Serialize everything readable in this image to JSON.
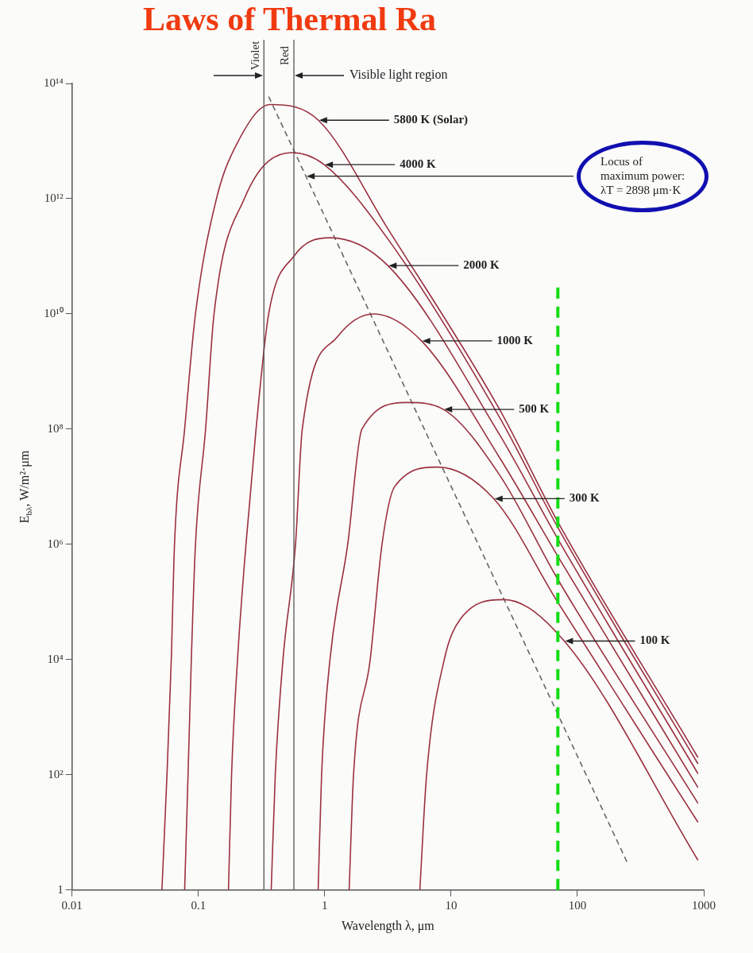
{
  "chart_data": {
    "type": "line",
    "title": "Laws of Thermal Ra",
    "xlabel": "Wavelength λ, μm",
    "ylabel": "E$_{bλ}$, W/m²·μm",
    "log": "xy",
    "grid": false,
    "legend": false,
    "marker": "none",
    "line_style": "solid",
    "xlim": [
      0.01,
      1000
    ],
    "xticks": [
      0.01,
      0.1,
      1,
      10,
      100,
      1000
    ],
    "ylim": [
      1,
      100000000000000.0
    ],
    "yticks": [
      1,
      {
        "value": 100,
        "label": "10²"
      },
      {
        "value": 10000,
        "label": "10⁴"
      },
      {
        "value": 1000000,
        "label": "10⁶"
      },
      {
        "value": 100000000,
        "label": "10⁸"
      },
      {
        "value": 10000000000,
        "label": "10¹⁰"
      },
      {
        "value": 1000000000000,
        "label": "10¹²"
      },
      {
        "value": 100000000000000.0,
        "label": "10¹⁴"
      }
    ],
    "series": [
      {
        "type": "line",
        "color": "#9b3040",
        "x": [
          0.0514,
          0.0564,
          0.061,
          0.0647,
          0.0778,
          0.0948,
          0.139,
          0.198,
          0.37,
          0.89,
          3.16,
          24.2,
          69.7,
          900
        ],
        "values": [
          1,
          100,
          10000,
          1000000,
          100000000,
          10000000000.0,
          1000000000000.0,
          8300000000000.0,
          43000000000000.0,
          23000000000000.0,
          300000000000.0,
          220000000.0,
          2500000.0,
          200
        ]
      },
      {
        "type": "line",
        "color": "#9b3040",
        "x": [
          0.0778,
          0.0828,
          0.0879,
          0.0948,
          0.114,
          0.133,
          0.231,
          0.55,
          0.99,
          3.16,
          24.2,
          69.7,
          900
        ],
        "values": [
          1,
          100,
          10000,
          1000000,
          100000000,
          10000000000.0,
          1000000000000.0,
          6300000000000.0,
          3900000000000.0,
          200000000000.0,
          160000000.0,
          2000000.0,
          155
        ]
      },
      {
        "type": "line",
        "color": "#9b3040",
        "x": [
          0.173,
          0.183,
          0.204,
          0.238,
          0.286,
          0.36,
          0.569,
          1.1,
          3.16,
          24.2,
          69.7,
          900
        ],
        "values": [
          1,
          100,
          10000,
          1000000,
          100000000,
          10000000000.0,
          100000000000.0,
          210000000000.0,
          69000000000.0,
          80000000.0,
          1260000.0,
          105
        ]
      },
      {
        "type": "line",
        "color": "#9b3040",
        "x": [
          0.377,
          0.406,
          0.467,
          0.587,
          0.664,
          1.26,
          2.44,
          5.83,
          24.2,
          69.7,
          900
        ],
        "values": [
          1,
          100,
          10000,
          1000000,
          100000000,
          4000000000.0,
          10000000000.0,
          3400000000.0,
          32000000.0,
          630000,
          60
        ]
      },
      {
        "type": "line",
        "color": "#9b3040",
        "x": [
          0.887,
          0.944,
          1.1,
          1.52,
          1.97,
          4.5,
          8.7,
          24.2,
          69.7,
          900
        ],
        "values": [
          1,
          100,
          10000,
          1000000,
          100000000,
          290000000.0,
          220000000.0,
          16000000.0,
          250000,
          32
        ]
      },
      {
        "type": "line",
        "color": "#9b3040",
        "x": [
          1.56,
          1.69,
          2.29,
          2.84,
          3.57,
          7.8,
          21.8,
          69.7,
          900
        ],
        "values": [
          1,
          100,
          10000,
          1000000,
          10000000,
          22000000.0,
          6200000.0,
          100000,
          15
        ]
      },
      {
        "type": "line",
        "color": "#9b3040",
        "x": [
          5.66,
          6.4,
          8.83,
          11.8,
          26.2,
          78.7,
          900
        ],
        "values": [
          1,
          100,
          10000,
          50000,
          110000,
          21000,
          3.3
        ]
      },
      {
        "type": "line",
        "line_style": "dashed",
        "color": "#666666",
        "x": [
          0.36,
          248
        ],
        "values": [
          59000000000000.0,
          3
        ]
      }
    ],
    "ref_lines": [
      {
        "axis": "x",
        "value": 0.33,
        "label": "Violet",
        "color": "#555555"
      },
      {
        "axis": "x",
        "value": 0.57,
        "label": "Red",
        "color": "#555555"
      },
      {
        "axis": "x",
        "value": 70,
        "color": "#11dd11",
        "line_style": "dashed"
      }
    ],
    "annotations": [
      {
        "text": "5800 K (Solar)",
        "x": 0.89,
        "y": 23000000000000.0
      },
      {
        "text": "4000 K",
        "x": 0.99,
        "y": 3900000000000.0
      },
      {
        "text": "2000 K",
        "x": 3.16,
        "y": 69000000000.0
      },
      {
        "text": "1000 K",
        "x": 5.83,
        "y": 3400000000.0
      },
      {
        "text": "500 K",
        "x": 8.7,
        "y": 220000000.0
      },
      {
        "text": "300 K",
        "x": 21.8,
        "y": 6200000.0
      },
      {
        "text": "100 K",
        "x": 78.7,
        "y": 21000
      },
      "Locus of\nmaximum power:\nλT = 2898 μm·K",
      "Visible light region"
    ]
  }
}
